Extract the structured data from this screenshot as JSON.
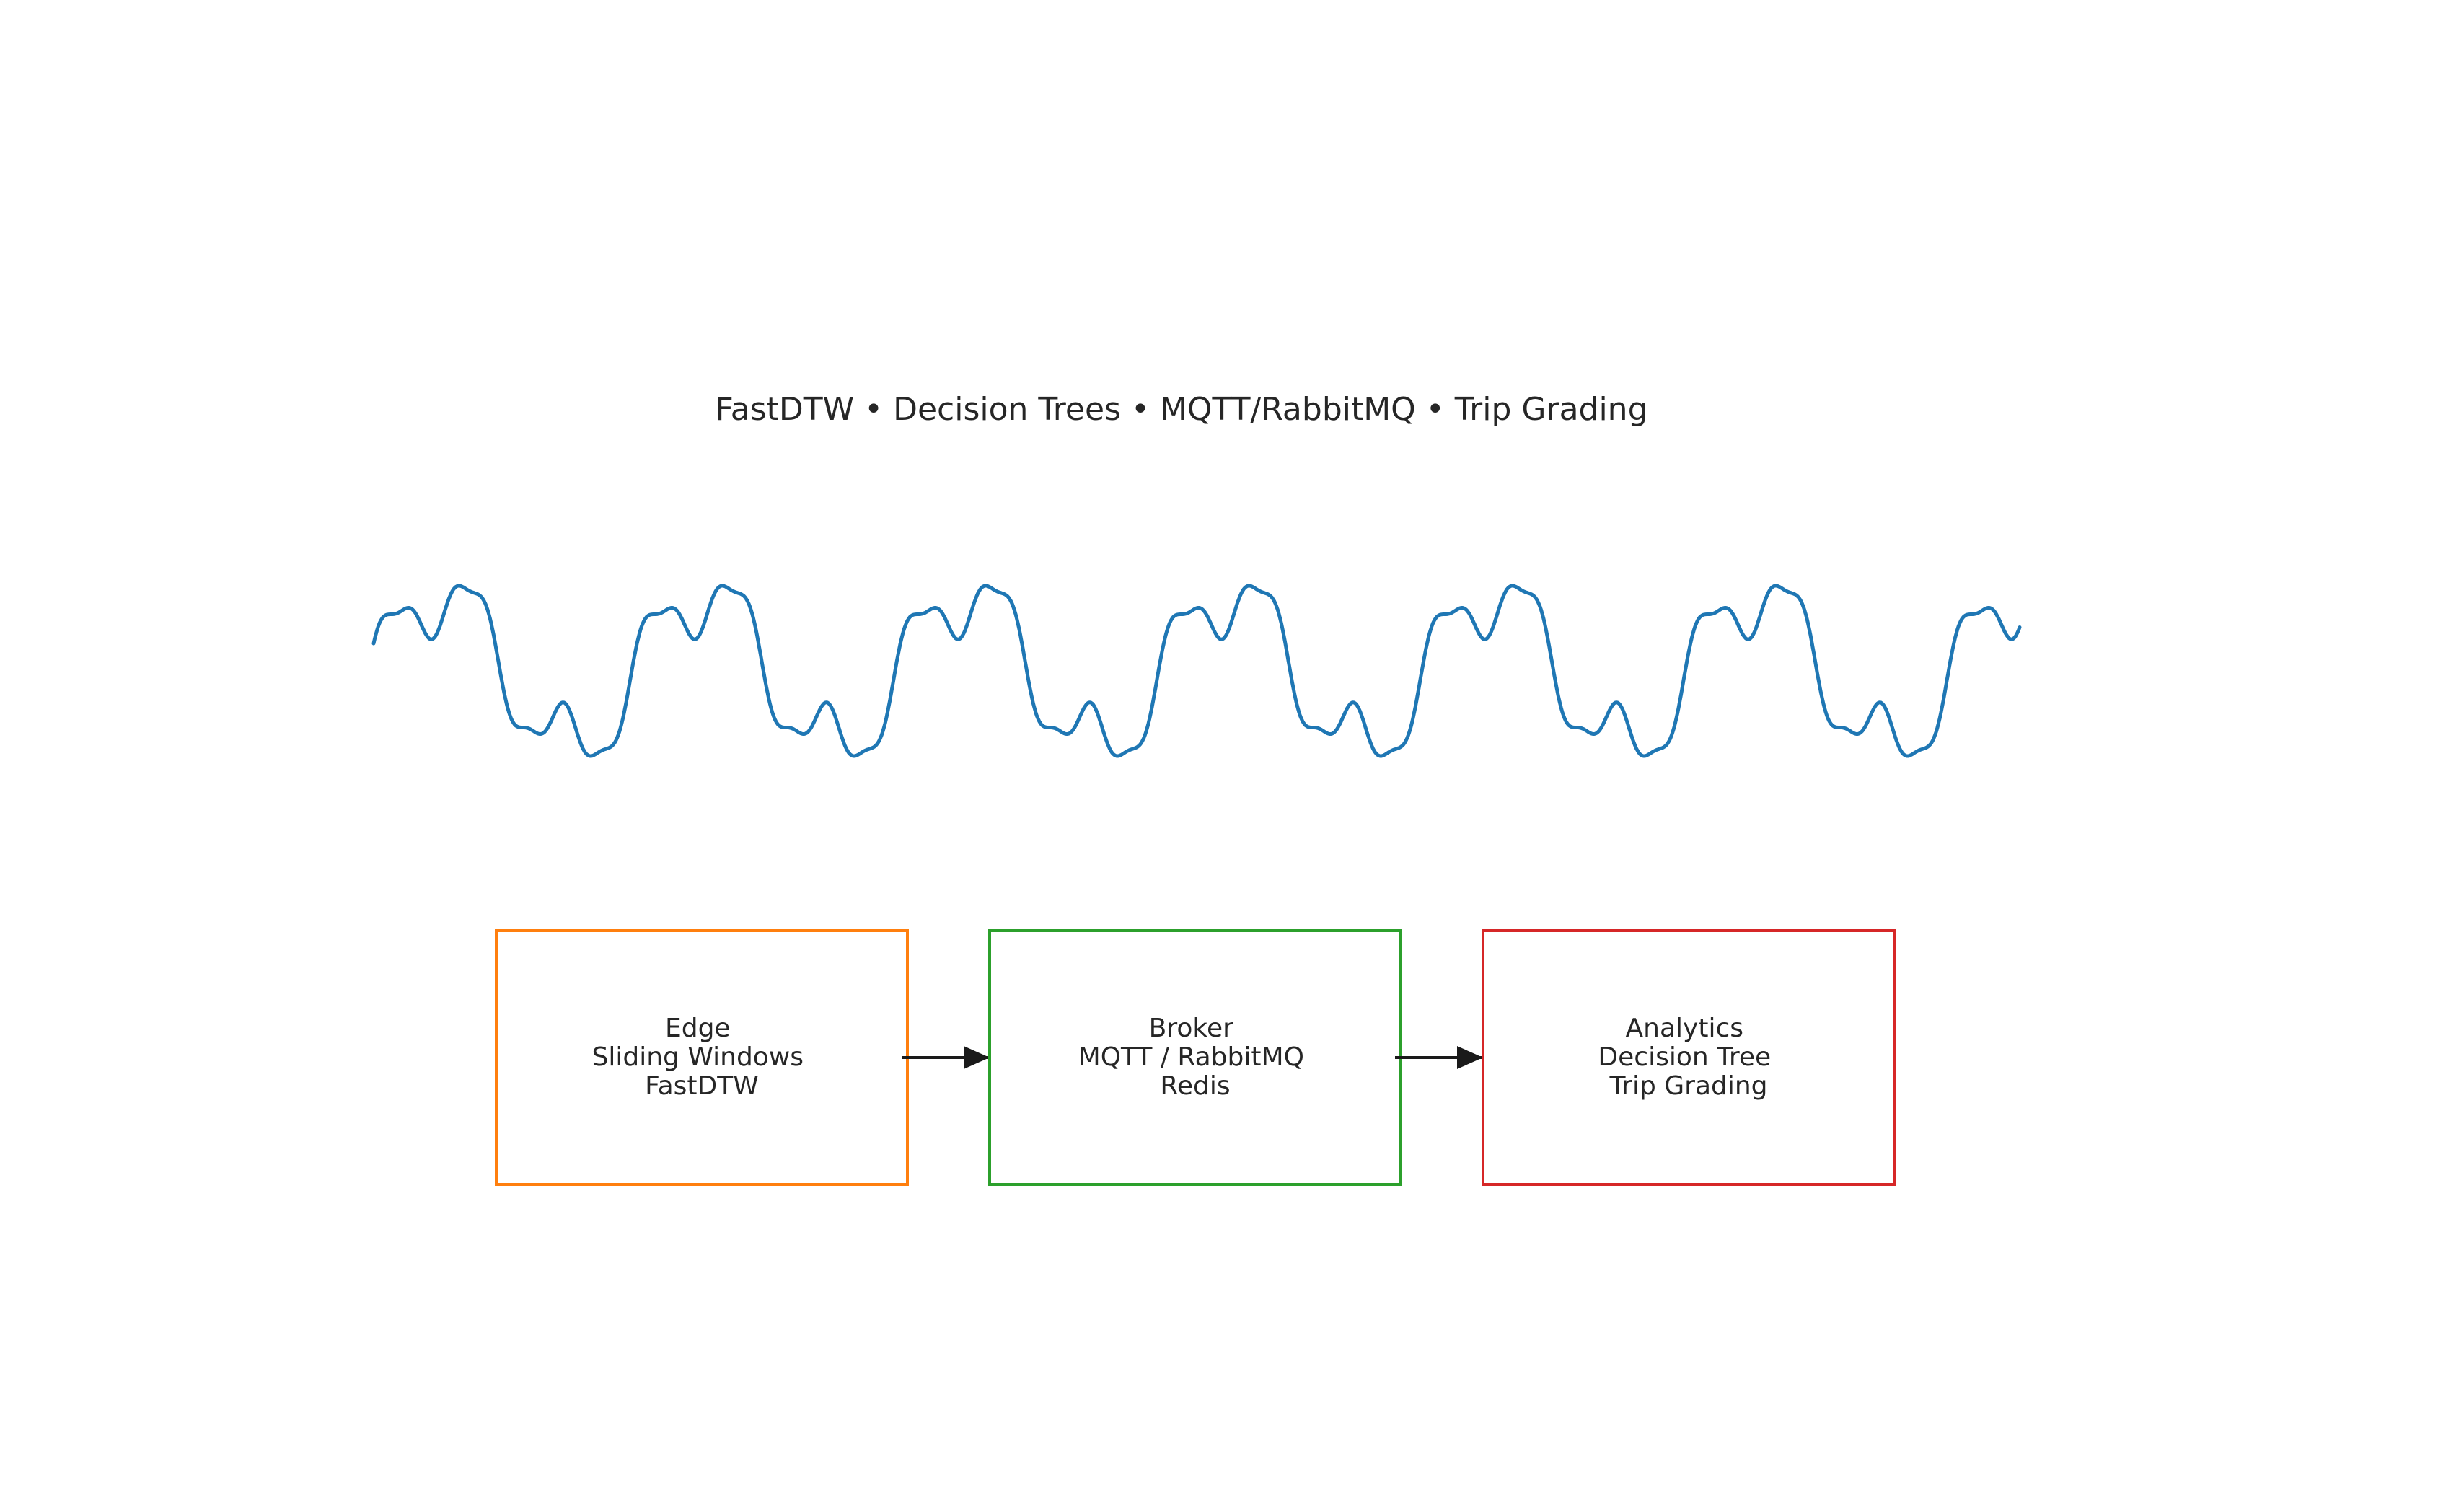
{
  "subtitle": "FastDTW • Decision Trees • MQTT/RabbitMQ • Trip Grading",
  "signal": {
    "color": "#1f77b4",
    "cycles": 6.25,
    "components": [
      {
        "amplitude": 1.0,
        "harmonic": 1,
        "phase": 0
      },
      {
        "amplitude": 0.45,
        "harmonic": 3,
        "phase": 0.6
      },
      {
        "amplitude": 0.12,
        "harmonic": 7,
        "phase": 1.1
      }
    ]
  },
  "arrow_color": "#1a1a1a",
  "boxes": [
    {
      "id": "edge",
      "color": "#ff7f0e",
      "lines": [
        "Edge",
        "Sliding Windows",
        "FastDTW"
      ]
    },
    {
      "id": "broker",
      "color": "#2ca02c",
      "lines": [
        "Broker",
        "MQTT / RabbitMQ",
        "Redis"
      ]
    },
    {
      "id": "analytics",
      "color": "#d62728",
      "lines": [
        "Analytics",
        "Decision Tree",
        "Trip Grading"
      ]
    }
  ]
}
